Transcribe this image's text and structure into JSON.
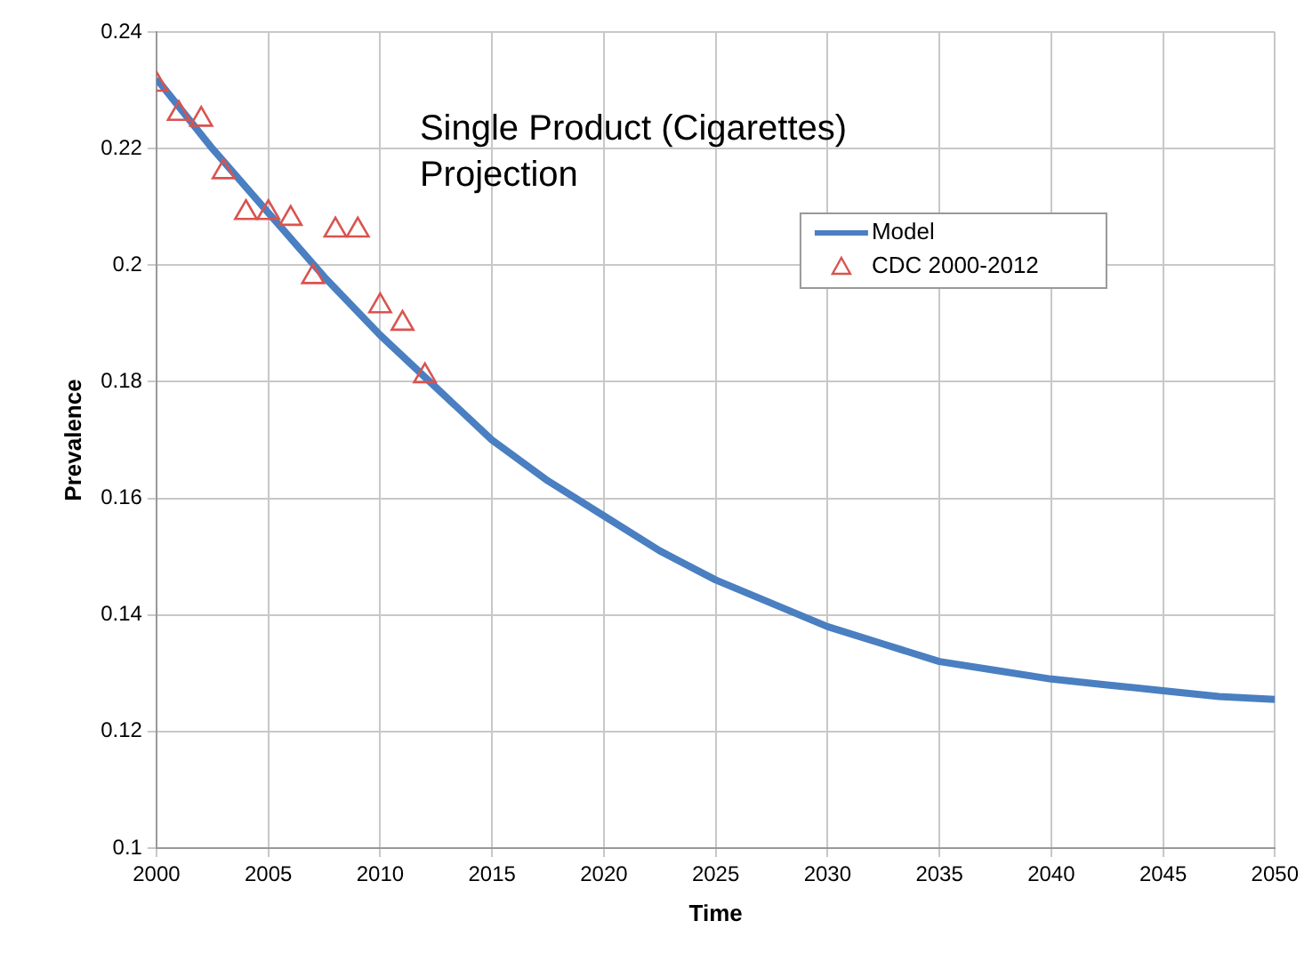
{
  "chart_data": {
    "type": "line",
    "xlabel": "Time",
    "ylabel": "Prevalence",
    "annotations": [
      "Single Product (Cigarettes)\nProjection"
    ],
    "xlim": [
      2000,
      2050
    ],
    "xticks": [
      2000,
      2005,
      2010,
      2015,
      2020,
      2025,
      2030,
      2035,
      2040,
      2045,
      2050
    ],
    "ylim": [
      0.1,
      0.24
    ],
    "yticks": [
      0.1,
      0.12,
      0.14,
      0.16,
      0.18,
      0.2,
      0.22,
      0.24
    ],
    "grid": true,
    "legend": "top right",
    "series": [
      {
        "name": "Model",
        "color": "#4a7fc1",
        "marker": "none",
        "x": [
          2000,
          2002.5,
          2005,
          2007.5,
          2010,
          2012.5,
          2015,
          2017.5,
          2020,
          2022.5,
          2025,
          2027.5,
          2030,
          2032.5,
          2035,
          2037.5,
          2040,
          2042.5,
          2045,
          2047.5,
          2050
        ],
        "values": [
          0.232,
          0.22,
          0.209,
          0.198,
          0.188,
          0.179,
          0.17,
          0.163,
          0.157,
          0.151,
          0.146,
          0.142,
          0.138,
          0.135,
          0.132,
          0.1305,
          0.129,
          0.128,
          0.127,
          0.126,
          0.1255
        ]
      },
      {
        "name": "CDC 2000-2012",
        "type": "scatter",
        "color": "#d9534f",
        "marker": "triangle",
        "x": [
          2000,
          2001,
          2002,
          2003,
          2004,
          2005,
          2006,
          2007,
          2008,
          2009,
          2010,
          2011,
          2012
        ],
        "values": [
          0.231,
          0.226,
          0.225,
          0.216,
          0.209,
          0.209,
          0.208,
          0.198,
          0.206,
          0.206,
          0.193,
          0.19,
          0.181
        ]
      }
    ]
  }
}
